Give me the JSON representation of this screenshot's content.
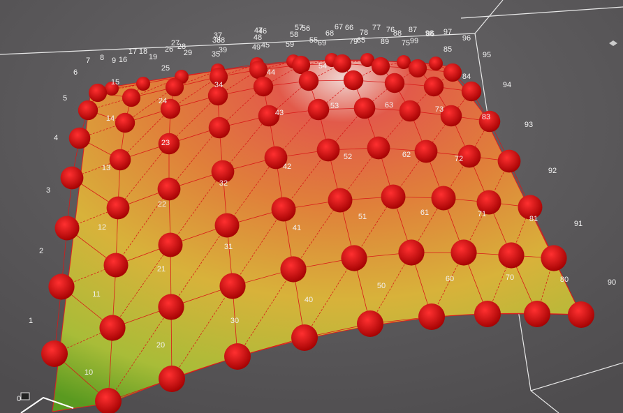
{
  "viewport": {
    "labels": [
      "0",
      "1",
      "2",
      "3",
      "4",
      "5",
      "6",
      "7",
      "8",
      "9",
      "16",
      "17",
      "18",
      "19",
      "26",
      "27",
      "28",
      "29",
      "25",
      "35",
      "36",
      "37",
      "38",
      "39",
      "48",
      "49",
      "46",
      "47",
      "45",
      "57",
      "56",
      "58",
      "59",
      "55",
      "69",
      "67",
      "66",
      "68",
      "79",
      "65",
      "78",
      "77",
      "76",
      "88",
      "89",
      "75",
      "87",
      "86",
      "98",
      "99",
      "97",
      "96",
      "85",
      "95",
      "84",
      "94",
      "93",
      "92",
      "91",
      "90",
      "15",
      "14",
      "13",
      "12",
      "11",
      "10",
      "24",
      "23",
      "22",
      "21",
      "20",
      "34",
      "32",
      "31",
      "30",
      "44",
      "43",
      "42",
      "41",
      "40",
      "54",
      "53",
      "52",
      "51",
      "50",
      "63",
      "62",
      "61",
      "60",
      "73",
      "72",
      "71",
      "70",
      "83",
      "81",
      "80"
    ]
  }
}
